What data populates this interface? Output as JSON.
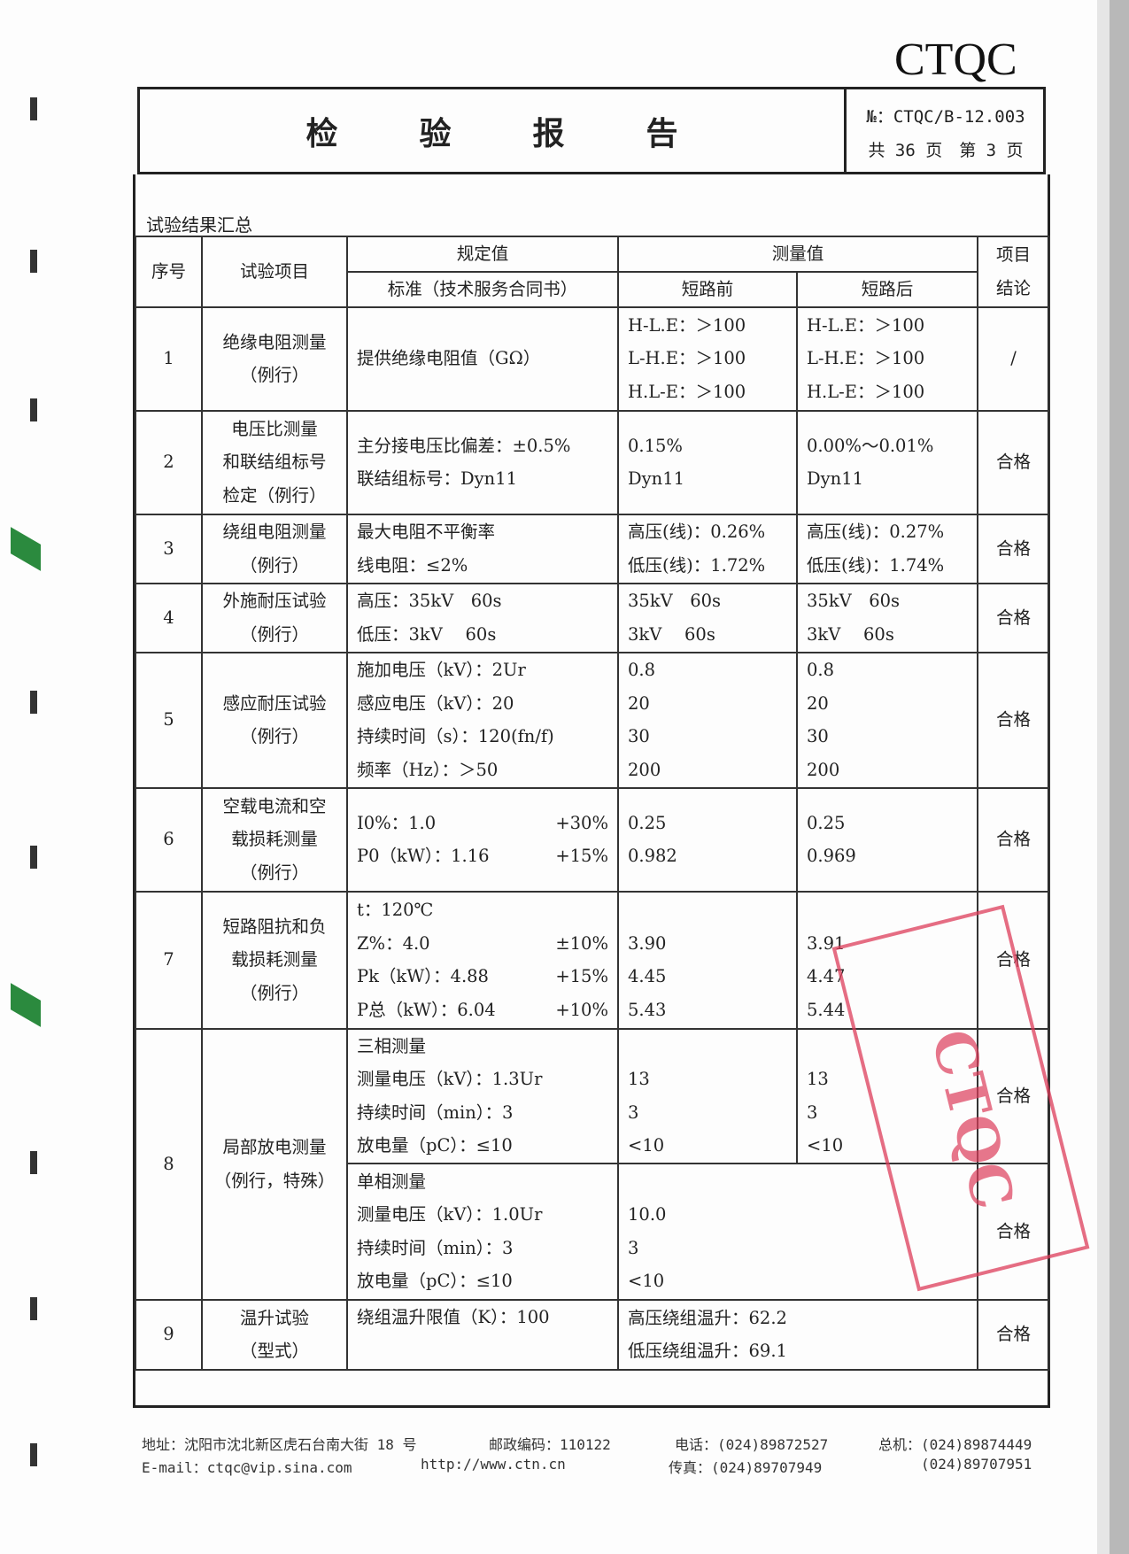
{
  "header": {
    "logo": "CTQC",
    "title_chars": [
      "检",
      "验",
      "报",
      "告"
    ],
    "doc_no": "№：CTQC/B-12.003",
    "pages": "共 36 页　第 3 页"
  },
  "section_title": "试验结果汇总",
  "table": {
    "headers": {
      "no": "序号",
      "item": "试验项目",
      "spec": "规定值",
      "spec_sub": "标准（技术服务合同书）",
      "measured": "测量值",
      "before": "短路前",
      "after": "短路后",
      "conclusion": "项目结论"
    },
    "rows": [
      {
        "no": "1",
        "item": [
          "绝缘电阻测量",
          "（例行）"
        ],
        "spec": [
          [
            "提供绝缘电阻值（GΩ）",
            ""
          ]
        ],
        "before": [
          "H-L.E：＞100",
          "L-H.E：＞100",
          "H.L-E：＞100"
        ],
        "after": [
          "H-L.E：＞100",
          "L-H.E：＞100",
          "H.L-E：＞100"
        ],
        "result": "/"
      },
      {
        "no": "2",
        "item": [
          "电压比测量",
          "和联结组标号",
          "检定（例行）"
        ],
        "spec": [
          [
            "主分接电压比偏差：±0.5%",
            ""
          ],
          [
            "联结组标号：Dyn11",
            ""
          ]
        ],
        "before": [
          "0.15%",
          "Dyn11"
        ],
        "after": [
          "0.00%～0.01%",
          "Dyn11"
        ],
        "result": "合格"
      },
      {
        "no": "3",
        "item": [
          "绕组电阻测量",
          "（例行）"
        ],
        "spec": [
          [
            "最大电阻不平衡率",
            ""
          ],
          [
            "线电阻：≤2%",
            ""
          ]
        ],
        "before": [
          "高压(线)：0.26%",
          "低压(线)：1.72%"
        ],
        "after": [
          "高压(线)：0.27%",
          "低压(线)：1.74%"
        ],
        "result": "合格"
      },
      {
        "no": "4",
        "item": [
          "外施耐压试验",
          "（例行）"
        ],
        "spec": [
          [
            "高压：35kV　60s",
            ""
          ],
          [
            "低压：3kV　 60s",
            ""
          ]
        ],
        "before": [
          "35kV　60s",
          "3kV　 60s"
        ],
        "after": [
          "35kV　60s",
          "3kV　 60s"
        ],
        "result": "合格"
      },
      {
        "no": "5",
        "item": [
          "感应耐压试验",
          "（例行）"
        ],
        "spec": [
          [
            "施加电压（kV）：2Ur",
            ""
          ],
          [
            "感应电压（kV）：20",
            ""
          ],
          [
            "持续时间（s）：120(fn/f)",
            ""
          ],
          [
            "频率（Hz）：＞50",
            ""
          ]
        ],
        "before": [
          "0.8",
          "20",
          "30",
          "200"
        ],
        "after": [
          "0.8",
          "20",
          "30",
          "200"
        ],
        "result": "合格"
      },
      {
        "no": "6",
        "item": [
          "空载电流和空",
          "载损耗测量",
          "（例行）"
        ],
        "spec": [
          [
            "I0%：1.0",
            "+30%"
          ],
          [
            "P0（kW）：1.16",
            "+15%"
          ]
        ],
        "before": [
          "0.25",
          "0.982"
        ],
        "after": [
          "0.25",
          "0.969"
        ],
        "result": "合格"
      },
      {
        "no": "7",
        "item": [
          "短路阻抗和负",
          "载损耗测量",
          "（例行）"
        ],
        "spec": [
          [
            "t：120℃",
            ""
          ],
          [
            "Z%：4.0",
            "±10%"
          ],
          [
            "Pk（kW）：4.88",
            "+15%"
          ],
          [
            "P总（kW）：6.04",
            "+10%"
          ]
        ],
        "before": [
          "",
          "3.90",
          "4.45",
          "5.43"
        ],
        "after": [
          "",
          "3.91",
          "4.47",
          "5.44"
        ],
        "result": "合格"
      }
    ],
    "row8": {
      "no": "8",
      "item": [
        "局部放电测量",
        "（例行，特殊）"
      ],
      "three": {
        "spec": [
          "三相测量",
          "测量电压（kV）：1.3Ur",
          "持续时间（min）：3",
          "放电量（pC）：≤10"
        ],
        "before": [
          "",
          "13",
          "3",
          "<10"
        ],
        "after": [
          "",
          "13",
          "3",
          "<10"
        ],
        "result": "合格"
      },
      "single": {
        "spec": [
          "单相测量",
          "测量电压（kV）：1.0Ur",
          "持续时间（min）：3",
          "放电量（pC）：≤10"
        ],
        "measured": [
          "",
          "10.0",
          "3",
          "<10"
        ],
        "result": "合格"
      }
    },
    "row9": {
      "no": "9",
      "item": [
        "温升试验",
        "（型式）"
      ],
      "spec": "绕组温升限值（K）：100",
      "measured": [
        "高压绕组温升：62.2",
        "低压绕组温升：69.1"
      ],
      "result": "合格"
    }
  },
  "stamp": {
    "text": "CTQC"
  },
  "footer": {
    "address": "地址：沈阳市沈北新区虎石台南大街 18 号",
    "postcode": "邮政编码：110122",
    "phone": "电话：(024)89872527",
    "switchboard": "总机：(024)89874449",
    "email": "E-mail：ctqc@vip.sina.com",
    "web": "http://www.ctn.cn",
    "fax": "传真：(024)89707949",
    "switchboard2": "(024)89707951"
  },
  "colors": {
    "stamp": "#dc3c5a",
    "ink": "#222222"
  }
}
